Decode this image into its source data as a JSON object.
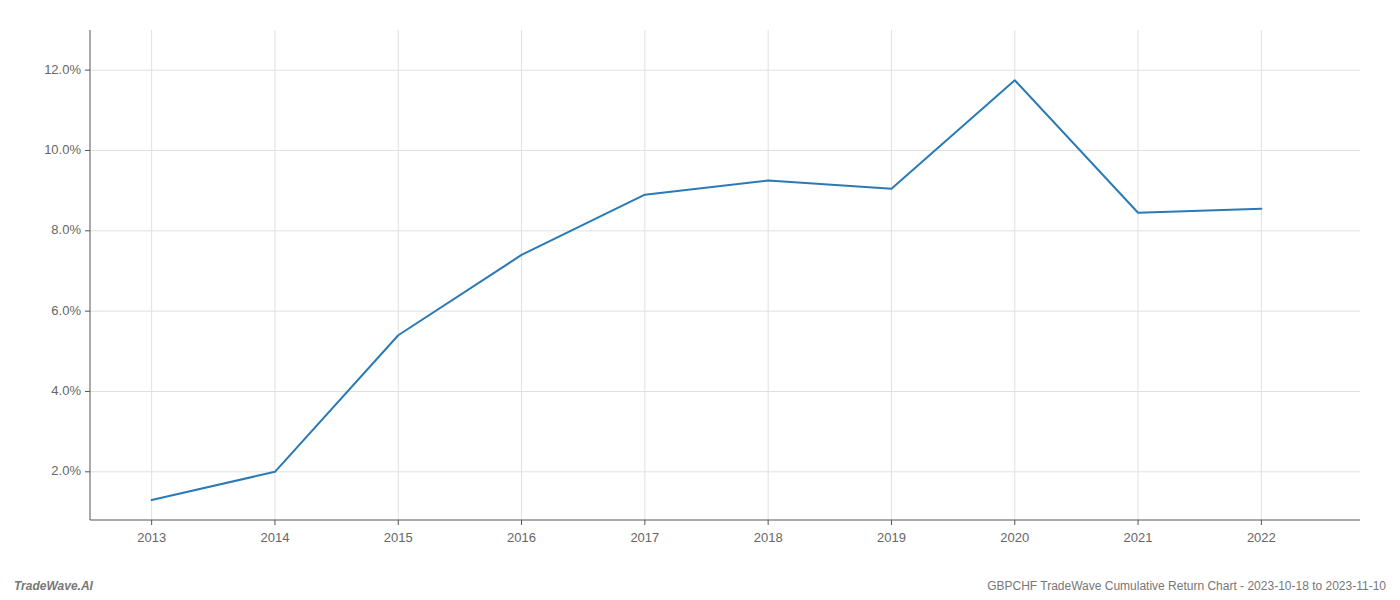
{
  "chart_data": {
    "type": "line",
    "x": [
      2013,
      2014,
      2015,
      2016,
      2017,
      2018,
      2019,
      2020,
      2021,
      2022
    ],
    "values": [
      1.3,
      2.0,
      5.4,
      7.4,
      8.9,
      9.25,
      9.05,
      11.75,
      8.45,
      8.55
    ],
    "color": "#2a7ab5",
    "xlim": [
      2012.5,
      2022.8
    ],
    "xticks": [
      2013,
      2014,
      2015,
      2016,
      2017,
      2018,
      2019,
      2020,
      2021,
      2022
    ],
    "ylim": [
      0.8,
      13.0
    ],
    "yticks": [
      {
        "value": 2.0,
        "label": "2.0%"
      },
      {
        "value": 4.0,
        "label": "4.0%"
      },
      {
        "value": 6.0,
        "label": "6.0%"
      },
      {
        "value": 8.0,
        "label": "8.0%"
      },
      {
        "value": 10.0,
        "label": "10.0%"
      },
      {
        "value": 12.0,
        "label": "12.0%"
      }
    ],
    "grid": true,
    "annotations": [
      "TradeWave.AI",
      "GBPCHF TradeWave Cumulative Return Chart - 2023-10-18 to 2023-11-10"
    ]
  }
}
